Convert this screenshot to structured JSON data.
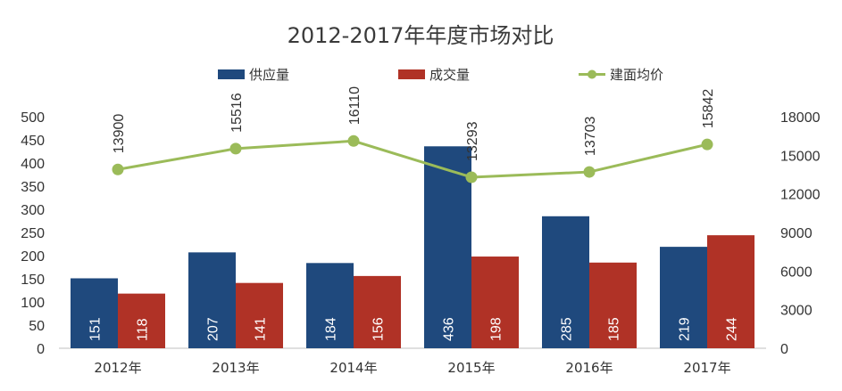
{
  "chart_data": {
    "type": "bar+line",
    "title": "2012-2017年年度市场对比",
    "categories": [
      "2012年",
      "2013年",
      "2014年",
      "2015年",
      "2016年",
      "2017年"
    ],
    "series": [
      {
        "name": "供应量",
        "type": "bar",
        "axis": "left",
        "color": "#1f497d",
        "values": [
          151,
          207,
          184,
          436,
          285,
          219
        ]
      },
      {
        "name": "成交量",
        "type": "bar",
        "axis": "left",
        "color": "#b03226",
        "values": [
          118,
          141,
          156,
          198,
          185,
          244
        ]
      },
      {
        "name": "建面均价",
        "type": "line",
        "axis": "right",
        "color": "#9bbb59",
        "values": [
          13900,
          15516,
          16110,
          13293,
          13703,
          15842
        ]
      }
    ],
    "y_left": {
      "min": 0,
      "max": 500,
      "step": 50,
      "ticks": [
        "0",
        "50",
        "100",
        "150",
        "200",
        "250",
        "300",
        "350",
        "400",
        "450",
        "500"
      ]
    },
    "y_right": {
      "min": 0,
      "max": 18000,
      "step": 3000,
      "ticks": [
        "0",
        "3000",
        "6000",
        "9000",
        "12000",
        "15000",
        "18000"
      ]
    },
    "legend_position": "top",
    "grid": false
  }
}
